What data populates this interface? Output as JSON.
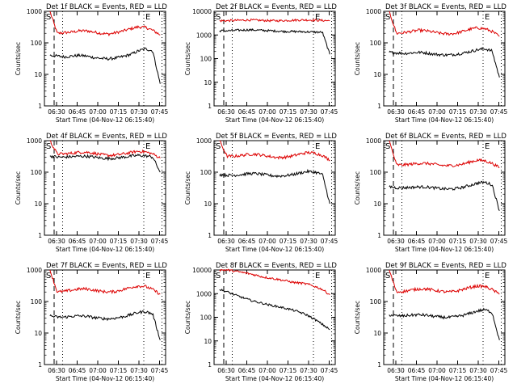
{
  "figure": {
    "colors": {
      "events": "#000000",
      "lld": "#dd0000",
      "axes": "#000000",
      "background": "#ffffff"
    }
  },
  "chart_data": [
    {
      "type": "line",
      "title": "Det 1f BLACK = Events, RED = LLD",
      "xlabel": "Start Time (04-Nov-12 06:15:40)",
      "ylabel": "Counts/sec",
      "xticks": [
        "06:30",
        "06:45",
        "07:00",
        "07:15",
        "07:30",
        "07:45"
      ],
      "yticks": [
        "1",
        "10",
        "100",
        "1000"
      ],
      "ylim": [
        1,
        1000
      ],
      "yscale": "log",
      "markers": [
        "S",
        "E"
      ],
      "series": [
        {
          "name": "LLD",
          "color": "#dd0000",
          "values": [
            1000,
            200,
            210,
            220,
            240,
            240,
            220,
            200,
            190,
            210,
            240,
            280,
            320,
            310,
            250,
            180
          ]
        },
        {
          "name": "Events",
          "color": "#000000",
          "values": [
            40,
            38,
            36,
            38,
            40,
            38,
            34,
            32,
            31,
            33,
            37,
            43,
            55,
            65,
            55,
            5
          ]
        }
      ]
    },
    {
      "type": "line",
      "title": "Det 2f BLACK = Events, RED = LLD",
      "xlabel": "Start Time (04-Nov-12 06:15:40)",
      "ylabel": "Counts/sec",
      "xticks": [
        "06:30",
        "06:45",
        "07:00",
        "07:15",
        "07:30",
        "07:45"
      ],
      "yticks": [
        "1",
        "10",
        "100",
        "1000",
        "10000"
      ],
      "ylim": [
        1,
        10000
      ],
      "yscale": "log",
      "markers": [
        "S",
        "E"
      ],
      "series": [
        {
          "name": "LLD",
          "color": "#dd0000",
          "values": [
            4000,
            4000,
            4100,
            4200,
            4300,
            4200,
            4100,
            4000,
            4000,
            4100,
            4200,
            4300,
            4300,
            4200,
            4100,
            4000
          ]
        },
        {
          "name": "Events",
          "color": "#000000",
          "values": [
            1500,
            1500,
            1550,
            1600,
            1650,
            1600,
            1550,
            1500,
            1450,
            1400,
            1400,
            1380,
            1350,
            1320,
            1300,
            150
          ]
        }
      ]
    },
    {
      "type": "line",
      "title": "Det 3f BLACK = Events, RED = LLD",
      "xlabel": "Start Time (04-Nov-12 06:15:40)",
      "ylabel": "Counts/sec",
      "xticks": [
        "06:30",
        "06:45",
        "07:00",
        "07:15",
        "07:30",
        "07:45"
      ],
      "yticks": [
        "1",
        "10",
        "100",
        "1000"
      ],
      "ylim": [
        1,
        1000
      ],
      "yscale": "log",
      "markers": [
        "S",
        "E"
      ],
      "series": [
        {
          "name": "LLD",
          "color": "#dd0000",
          "values": [
            1000,
            200,
            210,
            230,
            250,
            240,
            220,
            200,
            190,
            200,
            230,
            270,
            300,
            280,
            230,
            160
          ]
        },
        {
          "name": "Events",
          "color": "#000000",
          "values": [
            50,
            48,
            46,
            48,
            50,
            48,
            44,
            42,
            41,
            43,
            47,
            53,
            60,
            65,
            55,
            8
          ]
        }
      ]
    },
    {
      "type": "line",
      "title": "Det 4f BLACK = Events, RED = LLD",
      "xlabel": "Start Time (04-Nov-12 06:15:40)",
      "ylabel": "Counts/sec",
      "xticks": [
        "06:30",
        "06:45",
        "07:00",
        "07:15",
        "07:30",
        "07:45"
      ],
      "yticks": [
        "1",
        "10",
        "100",
        "1000"
      ],
      "ylim": [
        1,
        1000
      ],
      "yscale": "log",
      "markers": [
        "S",
        "E"
      ],
      "series": [
        {
          "name": "LLD",
          "color": "#dd0000",
          "values": [
            1000,
            380,
            380,
            400,
            430,
            430,
            400,
            360,
            340,
            350,
            380,
            420,
            460,
            440,
            380,
            280
          ]
        },
        {
          "name": "Events",
          "color": "#000000",
          "values": [
            330,
            300,
            300,
            310,
            320,
            320,
            300,
            280,
            270,
            280,
            300,
            320,
            340,
            330,
            300,
            100
          ]
        }
      ]
    },
    {
      "type": "line",
      "title": "Det 5f BLACK = Events, RED = LLD",
      "xlabel": "Start Time (04-Nov-12 06:15:40)",
      "ylabel": "Counts/sec",
      "xticks": [
        "06:30",
        "06:45",
        "07:00",
        "07:15",
        "07:30",
        "07:45"
      ],
      "yticks": [
        "1",
        "10",
        "100",
        "1000"
      ],
      "ylim": [
        1,
        1000
      ],
      "yscale": "log",
      "markers": [
        "S",
        "E"
      ],
      "series": [
        {
          "name": "LLD",
          "color": "#dd0000",
          "values": [
            1000,
            320,
            320,
            340,
            370,
            370,
            340,
            310,
            290,
            300,
            330,
            380,
            420,
            400,
            340,
            240
          ]
        },
        {
          "name": "Events",
          "color": "#000000",
          "values": [
            85,
            80,
            80,
            84,
            90,
            90,
            84,
            78,
            75,
            78,
            84,
            95,
            105,
            100,
            85,
            10
          ]
        }
      ]
    },
    {
      "type": "line",
      "title": "Det 6f BLACK = Events, RED = LLD",
      "xlabel": "Start Time (04-Nov-12 06:15:40)",
      "ylabel": "Counts/sec",
      "xticks": [
        "06:30",
        "06:45",
        "07:00",
        "07:15",
        "07:30",
        "07:45"
      ],
      "yticks": [
        "1",
        "10",
        "100",
        "1000"
      ],
      "ylim": [
        1,
        1000
      ],
      "yscale": "log",
      "markers": [
        "S",
        "E"
      ],
      "series": [
        {
          "name": "LLD",
          "color": "#dd0000",
          "values": [
            1000,
            170,
            170,
            180,
            190,
            190,
            180,
            165,
            160,
            165,
            180,
            210,
            240,
            230,
            190,
            140
          ]
        },
        {
          "name": "Events",
          "color": "#000000",
          "values": [
            35,
            32,
            32,
            33,
            34,
            34,
            32,
            30,
            29,
            30,
            33,
            38,
            45,
            48,
            40,
            6
          ]
        }
      ]
    },
    {
      "type": "line",
      "title": "Det 7f BLACK = Events, RED = LLD",
      "xlabel": "Start Time (04-Nov-12 06:15:40)",
      "ylabel": "Counts/sec",
      "xticks": [
        "06:30",
        "06:45",
        "07:00",
        "07:15",
        "07:30",
        "07:45"
      ],
      "yticks": [
        "1",
        "10",
        "100",
        "1000"
      ],
      "ylim": [
        1,
        1000
      ],
      "yscale": "log",
      "markers": [
        "S",
        "E"
      ],
      "series": [
        {
          "name": "LLD",
          "color": "#dd0000",
          "values": [
            1000,
            200,
            210,
            230,
            250,
            250,
            230,
            210,
            200,
            210,
            240,
            280,
            310,
            300,
            240,
            170
          ]
        },
        {
          "name": "Events",
          "color": "#000000",
          "values": [
            35,
            32,
            32,
            34,
            35,
            34,
            31,
            29,
            28,
            30,
            33,
            38,
            45,
            48,
            40,
            6
          ]
        }
      ]
    },
    {
      "type": "line",
      "title": "Det 8f BLACK = Events, RED = LLD",
      "xlabel": "Start Time (04-Nov-12 06:15:40)",
      "ylabel": "Counts/sec",
      "xticks": [
        "06:30",
        "06:45",
        "07:00",
        "07:15",
        "07:30",
        "07:45"
      ],
      "yticks": [
        "1",
        "10",
        "100",
        "1000",
        "10000"
      ],
      "ylim": [
        1,
        10000
      ],
      "yscale": "log",
      "markers": [
        "S",
        "E"
      ],
      "series": [
        {
          "name": "LLD",
          "color": "#dd0000",
          "values": [
            10000,
            10000,
            9000,
            8000,
            7000,
            6000,
            5000,
            4500,
            4000,
            3500,
            3000,
            2800,
            2500,
            2000,
            1500,
            900
          ]
        },
        {
          "name": "Events",
          "color": "#000000",
          "values": [
            1500,
            1200,
            900,
            700,
            550,
            450,
            380,
            320,
            280,
            240,
            200,
            160,
            120,
            80,
            50,
            30
          ]
        }
      ]
    },
    {
      "type": "line",
      "title": "Det 9f BLACK = Events, RED = LLD",
      "xlabel": "Start Time (04-Nov-12 06:15:40)",
      "ylabel": "Counts/sec",
      "xticks": [
        "06:30",
        "06:45",
        "07:00",
        "07:15",
        "07:30",
        "07:45"
      ],
      "yticks": [
        "1",
        "10",
        "100",
        "1000"
      ],
      "ylim": [
        1,
        1000
      ],
      "yscale": "log",
      "markers": [
        "S",
        "E"
      ],
      "series": [
        {
          "name": "LLD",
          "color": "#dd0000",
          "values": [
            1000,
            200,
            210,
            230,
            250,
            250,
            230,
            210,
            200,
            210,
            240,
            280,
            310,
            300,
            240,
            170
          ]
        },
        {
          "name": "Events",
          "color": "#000000",
          "values": [
            38,
            35,
            35,
            37,
            38,
            37,
            34,
            32,
            31,
            33,
            36,
            42,
            50,
            55,
            45,
            6
          ]
        }
      ]
    }
  ]
}
